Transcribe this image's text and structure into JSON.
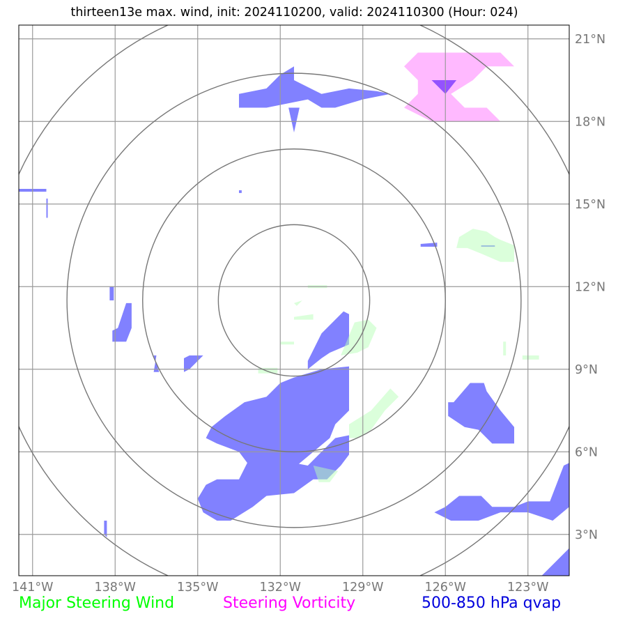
{
  "chart_data": {
    "type": "map",
    "title": "thirteen13e max. wind, init: 2024110200, valid: 2024110300 (Hour: 024)",
    "lon_range": [
      -141.5,
      -121.5
    ],
    "lat_range": [
      1.5,
      21.5
    ],
    "lon_ticks": [
      -141,
      -138,
      -135,
      -132,
      -129,
      -126,
      -123
    ],
    "lon_tick_labels": [
      "141°W",
      "138°W",
      "135°W",
      "132°W",
      "129°W",
      "126°W",
      "123°W"
    ],
    "lat_ticks": [
      3,
      6,
      9,
      12,
      15,
      18,
      21
    ],
    "lat_tick_labels": [
      "3°N",
      "6°N",
      "9°N",
      "12°N",
      "15°N",
      "18°N",
      "21°N"
    ],
    "grid": true,
    "range_rings": {
      "center": {
        "lon": -131.5,
        "lat": 11.5
      },
      "radii_deg": [
        2.75,
        5.5,
        8.25,
        11.0
      ]
    },
    "legend": [
      {
        "label": "Major Steering Wind",
        "color": "#00ff00"
      },
      {
        "label": "Steering Vorticity",
        "color": "#ff00ff"
      },
      {
        "label": "500-850 hPa qvap",
        "color": "#0000dd"
      }
    ],
    "fields": [
      {
        "name": "500-850 hPa qvap",
        "color": "#5050ff",
        "opacity": 0.72,
        "polygons": [
          [
            [
              -132.5,
              18.5
            ],
            [
              -131,
              18.8
            ],
            [
              -130.5,
              18.5
            ],
            [
              -130,
              18.5
            ],
            [
              -129,
              18.8
            ],
            [
              -128,
              19.0
            ],
            [
              -128.5,
              19.1
            ],
            [
              -129.5,
              19.2
            ],
            [
              -130.5,
              19.0
            ],
            [
              -131.5,
              19.5
            ],
            [
              -131.5,
              20.0
            ],
            [
              -132,
              19.7
            ],
            [
              -132.5,
              19.2
            ],
            [
              -133.5,
              19.0
            ],
            [
              -133.5,
              18.5
            ]
          ],
          [
            [
              -131.7,
              18.5
            ],
            [
              -131.5,
              17.6
            ],
            [
              -131.3,
              18.5
            ]
          ],
          [
            [
              -141.5,
              15.55
            ],
            [
              -140.5,
              15.55
            ],
            [
              -140.5,
              15.45
            ],
            [
              -141.5,
              15.45
            ]
          ],
          [
            [
              -140.5,
              15.2
            ],
            [
              -140.45,
              15.2
            ],
            [
              -140.45,
              14.5
            ],
            [
              -140.5,
              14.5
            ]
          ],
          [
            [
              -126.9,
              13.55
            ],
            [
              -126.3,
              13.6
            ],
            [
              -126.3,
              13.45
            ],
            [
              -126.9,
              13.45
            ]
          ],
          [
            [
              -124.7,
              13.5
            ],
            [
              -124.2,
              13.5
            ],
            [
              -124.2,
              13.45
            ],
            [
              -124.7,
              13.45
            ]
          ],
          [
            [
              -138.2,
              12.0
            ],
            [
              -138.05,
              12.0
            ],
            [
              -138.05,
              11.5
            ],
            [
              -138.2,
              11.5
            ]
          ],
          [
            [
              -137.9,
              10.5
            ],
            [
              -137.6,
              11.4
            ],
            [
              -137.4,
              11.4
            ],
            [
              -137.4,
              10.5
            ],
            [
              -137.6,
              10.0
            ],
            [
              -138.1,
              10.0
            ],
            [
              -138.1,
              10.4
            ]
          ],
          [
            [
              -136.6,
              9.5
            ],
            [
              -136.4,
              8.9
            ],
            [
              -136.6,
              8.9
            ],
            [
              -136.5,
              9.5
            ]
          ],
          [
            [
              -135.3,
              9.5
            ],
            [
              -134.8,
              9.5
            ],
            [
              -135.3,
              9.0
            ],
            [
              -135.5,
              8.9
            ],
            [
              -135.5,
              9.4
            ]
          ],
          [
            [
              -130.5,
              10.3
            ],
            [
              -129.7,
              11.1
            ],
            [
              -129.5,
              11.0
            ],
            [
              -129.5,
              9.9
            ],
            [
              -130.2,
              9.6
            ],
            [
              -130.5,
              9.4
            ],
            [
              -131,
              9.0
            ],
            [
              -131,
              9.3
            ]
          ],
          [
            [
              -132,
              5.0
            ],
            [
              -131.5,
              5.6
            ],
            [
              -131,
              5.5
            ],
            [
              -130.5,
              6.0
            ],
            [
              -130,
              6.5
            ],
            [
              -129.5,
              6.6
            ],
            [
              -129.5,
              5.9
            ],
            [
              -129.8,
              5.5
            ],
            [
              -130.3,
              5.0
            ],
            [
              -130.8,
              5.0
            ],
            [
              -131.5,
              4.5
            ],
            [
              -132.5,
              4.4
            ],
            [
              -133,
              4.0
            ],
            [
              -133.8,
              3.5
            ],
            [
              -134.3,
              3.5
            ],
            [
              -134.8,
              3.8
            ],
            [
              -135,
              4.3
            ],
            [
              -134.7,
              4.8
            ],
            [
              -134.3,
              5.0
            ],
            [
              -133.5,
              5.0
            ],
            [
              -133.2,
              5.6
            ],
            [
              -133.5,
              6.0
            ],
            [
              -134.3,
              6.3
            ],
            [
              -134.7,
              6.5
            ],
            [
              -134.5,
              6.9
            ],
            [
              -134,
              7.3
            ],
            [
              -133.3,
              7.8
            ],
            [
              -132.5,
              8.0
            ],
            [
              -132,
              8.5
            ],
            [
              -131.5,
              8.7
            ],
            [
              -130.5,
              9.0
            ],
            [
              -129.5,
              9.1
            ],
            [
              -129.5,
              8.0
            ],
            [
              -129.5,
              7.5
            ],
            [
              -130,
              7.0
            ],
            [
              -130.2,
              6.5
            ]
          ],
          [
            [
              -125.7,
              7.8
            ],
            [
              -125.1,
              8.5
            ],
            [
              -124.6,
              8.5
            ],
            [
              -124.5,
              8.2
            ],
            [
              -124.0,
              7.5
            ],
            [
              -123.5,
              6.9
            ],
            [
              -123.5,
              6.3
            ],
            [
              -124.3,
              6.3
            ],
            [
              -124.8,
              6.8
            ],
            [
              -125.3,
              6.9
            ],
            [
              -125.9,
              7.3
            ],
            [
              -125.9,
              7.8
            ]
          ],
          [
            [
              -126.0,
              4.0
            ],
            [
              -125.5,
              4.4
            ],
            [
              -124.7,
              4.4
            ],
            [
              -124.3,
              4.0
            ],
            [
              -123.5,
              4.0
            ],
            [
              -123,
              4.2
            ],
            [
              -122.2,
              4.2
            ],
            [
              -121.7,
              5.5
            ],
            [
              -121.5,
              5.6
            ],
            [
              -121.5,
              4.0
            ],
            [
              -122.1,
              3.5
            ],
            [
              -123,
              3.8
            ],
            [
              -124,
              3.8
            ],
            [
              -124.8,
              3.5
            ],
            [
              -125.8,
              3.5
            ],
            [
              -126.4,
              3.8
            ]
          ],
          [
            [
              -121.5,
              2.5
            ],
            [
              -121.5,
              1.5
            ],
            [
              -122.5,
              1.5
            ],
            [
              -122.0,
              2.0
            ]
          ],
          [
            [
              -138.4,
              3.5
            ],
            [
              -138.3,
              3.5
            ],
            [
              -138.3,
              2.9
            ],
            [
              -138.4,
              3.0
            ]
          ],
          [
            [
              -133.5,
              15.5
            ],
            [
              -133.4,
              15.5
            ],
            [
              -133.4,
              15.4
            ],
            [
              -133.5,
              15.4
            ]
          ]
        ]
      },
      {
        "name": "Steering Vorticity",
        "color": "#ff80ff",
        "opacity": 0.55,
        "polygons": [
          [
            [
              -127.5,
              20.0
            ],
            [
              -127,
              20.5
            ],
            [
              -124,
              20.5
            ],
            [
              -123.5,
              20.0
            ],
            [
              -124.5,
              20.0
            ],
            [
              -125,
              19.5
            ],
            [
              -125.8,
              19.0
            ],
            [
              -125.3,
              18.5
            ],
            [
              -124.5,
              18.5
            ],
            [
              -124.0,
              18.0
            ],
            [
              -126.5,
              18.0
            ],
            [
              -127.5,
              18.5
            ],
            [
              -127.0,
              19.0
            ],
            [
              -127.0,
              19.5
            ]
          ]
        ]
      },
      {
        "name": "Steering Vorticity core",
        "color": "#7030ff",
        "opacity": 0.75,
        "polygons": [
          [
            [
              -126.5,
              19.5
            ],
            [
              -125.6,
              19.5
            ],
            [
              -126.0,
              19.0
            ]
          ]
        ]
      },
      {
        "name": "Major Steering Wind",
        "color": "#b8ffb8",
        "opacity": 0.5,
        "polygons": [
          [
            [
              -125.5,
              13.8
            ],
            [
              -125,
              14.1
            ],
            [
              -124.5,
              14.0
            ],
            [
              -124.2,
              13.8
            ],
            [
              -124,
              13.7
            ],
            [
              -123.5,
              13.5
            ],
            [
              -123.5,
              12.9
            ],
            [
              -124.0,
              12.9
            ],
            [
              -124.7,
              13.2
            ],
            [
              -125.2,
              13.4
            ],
            [
              -125.6,
              13.4
            ]
          ],
          [
            [
              -129.8,
              9.5
            ],
            [
              -129.3,
              10.7
            ],
            [
              -128.8,
              10.8
            ],
            [
              -128.5,
              10.5
            ],
            [
              -128.8,
              9.8
            ],
            [
              -129.2,
              9.6
            ]
          ],
          [
            [
              -129.5,
              7.0
            ],
            [
              -128.7,
              7.5
            ],
            [
              -128.0,
              8.3
            ],
            [
              -127.7,
              8.0
            ],
            [
              -128.2,
              7.5
            ],
            [
              -128.7,
              6.8
            ],
            [
              -129.2,
              6.5
            ],
            [
              -129.5,
              6.5
            ]
          ],
          [
            [
              -130.8,
              5.5
            ],
            [
              -129.9,
              5.3
            ],
            [
              -130.2,
              4.9
            ],
            [
              -130.6,
              4.9
            ]
          ],
          [
            [
              -131.5,
              10.9
            ],
            [
              -130.8,
              11.0
            ],
            [
              -130.8,
              10.8
            ],
            [
              -131.5,
              10.8
            ]
          ],
          [
            [
              -132.0,
              10.0
            ],
            [
              -131.5,
              10.0
            ],
            [
              -131.5,
              9.9
            ],
            [
              -132.0,
              9.9
            ]
          ],
          [
            [
              -131.5,
              11.4
            ],
            [
              -131.2,
              11.5
            ],
            [
              -131.4,
              11.3
            ]
          ],
          [
            [
              -131.0,
              12.05
            ],
            [
              -130.3,
              12.05
            ],
            [
              -130.3,
              11.95
            ],
            [
              -131.0,
              11.95
            ]
          ],
          [
            [
              -132.8,
              9.05
            ],
            [
              -132.1,
              9.05
            ],
            [
              -132.1,
              8.85
            ],
            [
              -132.8,
              8.85
            ]
          ],
          [
            [
              -123.2,
              9.5
            ],
            [
              -122.6,
              9.5
            ],
            [
              -122.6,
              9.35
            ],
            [
              -123.2,
              9.35
            ]
          ],
          [
            [
              -123.9,
              10.0
            ],
            [
              -123.8,
              10.0
            ],
            [
              -123.8,
              9.5
            ],
            [
              -123.9,
              9.5
            ]
          ]
        ]
      }
    ]
  }
}
